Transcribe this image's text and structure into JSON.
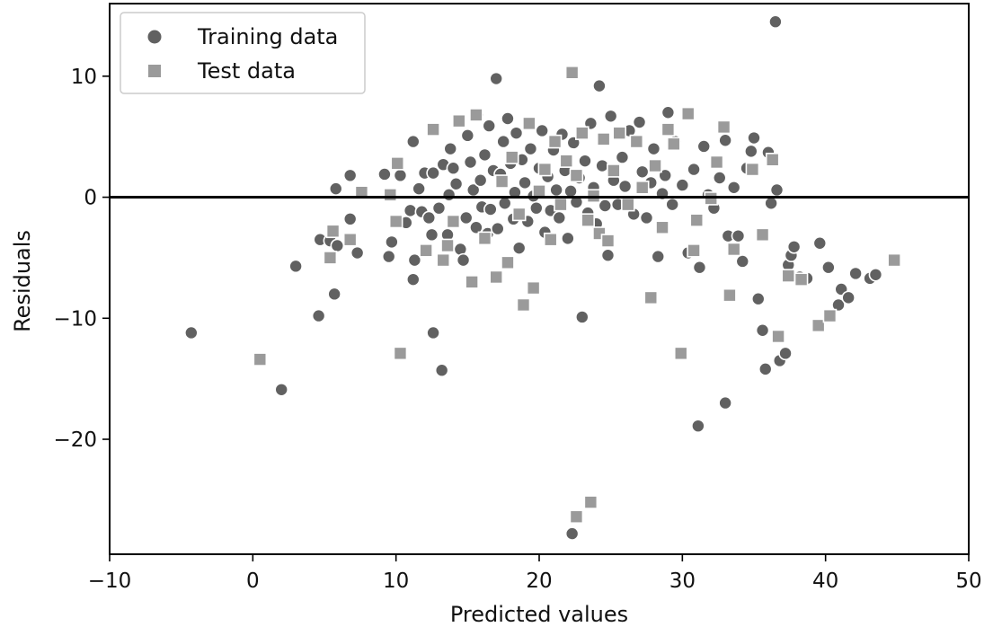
{
  "chart_data": {
    "type": "scatter",
    "title": "",
    "xlabel": "Predicted values",
    "ylabel": "Residuals",
    "xlim": [
      -10,
      50
    ],
    "ylim": [
      -29.5,
      16
    ],
    "xticks": [
      -10,
      0,
      10,
      20,
      30,
      40,
      50
    ],
    "yticks": [
      -20,
      -10,
      0,
      10
    ],
    "xtick_labels": [
      "−10",
      "0",
      "10",
      "20",
      "30",
      "40",
      "50"
    ],
    "ytick_labels": [
      "−20",
      "−10",
      "0",
      "10"
    ],
    "grid": false,
    "legend_position": "top-left",
    "reference_line": {
      "y": 0
    },
    "colors": {
      "training": "#616161",
      "test": "#9a9a9a",
      "line": "#000000",
      "edge": "#ffffff"
    },
    "series": [
      {
        "name": "Training data",
        "marker": "circle",
        "points": [
          [
            -4.3,
            -11.2
          ],
          [
            2.0,
            -15.9
          ],
          [
            3.0,
            -5.7
          ],
          [
            4.6,
            -9.8
          ],
          [
            4.7,
            -3.5
          ],
          [
            5.4,
            -3.6
          ],
          [
            5.7,
            -8.0
          ],
          [
            5.8,
            0.7
          ],
          [
            5.9,
            -4.0
          ],
          [
            6.8,
            1.8
          ],
          [
            6.8,
            -1.8
          ],
          [
            7.3,
            -4.6
          ],
          [
            9.2,
            1.9
          ],
          [
            9.5,
            -4.9
          ],
          [
            9.7,
            -3.7
          ],
          [
            10.3,
            1.8
          ],
          [
            10.7,
            -2.1
          ],
          [
            11.0,
            -1.1
          ],
          [
            11.2,
            -6.8
          ],
          [
            11.2,
            4.6
          ],
          [
            11.3,
            -5.2
          ],
          [
            11.6,
            0.7
          ],
          [
            11.8,
            -1.2
          ],
          [
            12.0,
            2.0
          ],
          [
            12.3,
            -1.7
          ],
          [
            12.5,
            -3.1
          ],
          [
            12.6,
            -11.2
          ],
          [
            12.6,
            2.0
          ],
          [
            13.0,
            -0.9
          ],
          [
            13.2,
            -14.3
          ],
          [
            13.3,
            2.7
          ],
          [
            13.6,
            -3.1
          ],
          [
            13.7,
            0.2
          ],
          [
            13.8,
            4.0
          ],
          [
            14.0,
            2.4
          ],
          [
            14.2,
            1.1
          ],
          [
            14.5,
            -4.3
          ],
          [
            14.7,
            -5.2
          ],
          [
            14.9,
            -1.7
          ],
          [
            15.0,
            5.1
          ],
          [
            15.2,
            2.9
          ],
          [
            15.4,
            0.6
          ],
          [
            15.6,
            -2.5
          ],
          [
            15.7,
            6.8
          ],
          [
            15.9,
            1.4
          ],
          [
            16.0,
            -0.8
          ],
          [
            16.2,
            3.5
          ],
          [
            16.4,
            -3.0
          ],
          [
            16.5,
            5.9
          ],
          [
            16.6,
            -1.0
          ],
          [
            16.8,
            2.2
          ],
          [
            17.0,
            9.8
          ],
          [
            17.1,
            -2.6
          ],
          [
            17.3,
            1.9
          ],
          [
            17.5,
            4.6
          ],
          [
            17.6,
            -0.5
          ],
          [
            17.8,
            6.5
          ],
          [
            18.0,
            2.8
          ],
          [
            18.2,
            -1.8
          ],
          [
            18.3,
            0.4
          ],
          [
            18.4,
            5.3
          ],
          [
            18.6,
            -4.2
          ],
          [
            18.8,
            3.1
          ],
          [
            19.0,
            1.2
          ],
          [
            19.2,
            -2.0
          ],
          [
            19.4,
            4.0
          ],
          [
            19.6,
            0.1
          ],
          [
            19.8,
            -0.9
          ],
          [
            20.0,
            2.4
          ],
          [
            20.2,
            5.5
          ],
          [
            20.4,
            -2.9
          ],
          [
            20.6,
            1.7
          ],
          [
            20.8,
            -1.1
          ],
          [
            21.0,
            3.9
          ],
          [
            21.2,
            0.6
          ],
          [
            21.4,
            -1.7
          ],
          [
            21.6,
            5.2
          ],
          [
            21.8,
            2.2
          ],
          [
            22.0,
            -3.4
          ],
          [
            22.2,
            0.5
          ],
          [
            22.4,
            4.5
          ],
          [
            22.6,
            -0.4
          ],
          [
            22.8,
            1.6
          ],
          [
            23.0,
            -9.9
          ],
          [
            23.2,
            3.0
          ],
          [
            23.4,
            -1.3
          ],
          [
            23.6,
            6.1
          ],
          [
            23.8,
            0.8
          ],
          [
            24.0,
            -2.2
          ],
          [
            24.2,
            9.2
          ],
          [
            24.4,
            2.6
          ],
          [
            24.6,
            -0.7
          ],
          [
            24.8,
            -4.8
          ],
          [
            25.0,
            6.7
          ],
          [
            25.2,
            1.4
          ],
          [
            25.5,
            -0.6
          ],
          [
            25.8,
            3.3
          ],
          [
            26.0,
            0.9
          ],
          [
            26.3,
            5.5
          ],
          [
            26.6,
            -1.4
          ],
          [
            27.0,
            6.2
          ],
          [
            27.2,
            2.1
          ],
          [
            27.5,
            -1.7
          ],
          [
            27.8,
            1.2
          ],
          [
            28.0,
            4.0
          ],
          [
            28.3,
            -4.9
          ],
          [
            28.6,
            0.3
          ],
          [
            28.8,
            1.8
          ],
          [
            29.0,
            7.0
          ],
          [
            29.3,
            -0.6
          ],
          [
            29.5,
            4.6
          ],
          [
            30.0,
            1.0
          ],
          [
            30.4,
            -4.6
          ],
          [
            30.8,
            2.3
          ],
          [
            31.1,
            -18.9
          ],
          [
            31.2,
            -5.8
          ],
          [
            31.5,
            4.2
          ],
          [
            31.8,
            0.2
          ],
          [
            32.2,
            -0.9
          ],
          [
            32.6,
            1.6
          ],
          [
            33.0,
            -17.0
          ],
          [
            33.0,
            4.7
          ],
          [
            33.2,
            -3.2
          ],
          [
            33.6,
            0.8
          ],
          [
            33.9,
            -3.2
          ],
          [
            34.2,
            -5.3
          ],
          [
            34.5,
            2.4
          ],
          [
            34.8,
            3.8
          ],
          [
            35.0,
            4.9
          ],
          [
            35.3,
            -8.4
          ],
          [
            35.6,
            -11.0
          ],
          [
            35.8,
            -14.2
          ],
          [
            36.0,
            3.7
          ],
          [
            36.2,
            -0.5
          ],
          [
            36.5,
            14.5
          ],
          [
            36.6,
            0.6
          ],
          [
            36.8,
            -13.5
          ],
          [
            37.2,
            -12.9
          ],
          [
            37.4,
            -5.6
          ],
          [
            37.6,
            -4.8
          ],
          [
            37.8,
            -4.1
          ],
          [
            38.2,
            -6.6
          ],
          [
            38.7,
            -6.7
          ],
          [
            39.6,
            -3.8
          ],
          [
            40.2,
            -5.8
          ],
          [
            40.9,
            -8.9
          ],
          [
            41.1,
            -7.6
          ],
          [
            41.6,
            -8.3
          ],
          [
            42.1,
            -6.3
          ],
          [
            43.1,
            -6.7
          ],
          [
            43.5,
            -6.4
          ],
          [
            22.3,
            -27.8
          ]
        ]
      },
      {
        "name": "Test data",
        "marker": "square",
        "points": [
          [
            0.5,
            -13.4
          ],
          [
            5.4,
            -5.0
          ],
          [
            5.6,
            -2.8
          ],
          [
            6.8,
            -3.5
          ],
          [
            7.6,
            0.4
          ],
          [
            9.6,
            0.2
          ],
          [
            10.0,
            -2.0
          ],
          [
            10.1,
            2.8
          ],
          [
            10.3,
            -12.9
          ],
          [
            12.1,
            -4.4
          ],
          [
            12.6,
            5.6
          ],
          [
            13.3,
            -5.2
          ],
          [
            13.6,
            -4.0
          ],
          [
            14.0,
            -2.0
          ],
          [
            14.4,
            6.3
          ],
          [
            15.3,
            -7.0
          ],
          [
            15.6,
            6.8
          ],
          [
            16.2,
            -3.4
          ],
          [
            17.0,
            -6.6
          ],
          [
            17.4,
            1.3
          ],
          [
            17.8,
            -5.4
          ],
          [
            18.1,
            3.3
          ],
          [
            18.6,
            -1.4
          ],
          [
            18.9,
            -8.9
          ],
          [
            19.3,
            6.1
          ],
          [
            19.6,
            -7.5
          ],
          [
            20.0,
            0.5
          ],
          [
            20.4,
            2.3
          ],
          [
            20.8,
            -3.5
          ],
          [
            21.1,
            4.6
          ],
          [
            21.5,
            -0.6
          ],
          [
            21.9,
            3.0
          ],
          [
            22.3,
            10.3
          ],
          [
            22.6,
            1.8
          ],
          [
            23.0,
            5.3
          ],
          [
            23.4,
            -1.9
          ],
          [
            23.8,
            0.1
          ],
          [
            24.2,
            -3.0
          ],
          [
            24.5,
            4.8
          ],
          [
            24.8,
            -3.6
          ],
          [
            25.2,
            2.2
          ],
          [
            25.6,
            5.3
          ],
          [
            26.2,
            -0.6
          ],
          [
            26.8,
            4.6
          ],
          [
            27.2,
            0.8
          ],
          [
            27.8,
            -8.3
          ],
          [
            28.1,
            2.6
          ],
          [
            28.6,
            -2.5
          ],
          [
            29.0,
            5.6
          ],
          [
            29.4,
            4.4
          ],
          [
            29.9,
            -12.9
          ],
          [
            30.4,
            6.9
          ],
          [
            30.8,
            -4.4
          ],
          [
            31.0,
            -1.9
          ],
          [
            32.0,
            -0.1
          ],
          [
            32.4,
            2.9
          ],
          [
            32.9,
            5.8
          ],
          [
            33.3,
            -8.1
          ],
          [
            33.6,
            -4.3
          ],
          [
            34.9,
            2.3
          ],
          [
            35.6,
            -3.1
          ],
          [
            36.3,
            3.1
          ],
          [
            36.7,
            -11.5
          ],
          [
            37.4,
            -6.5
          ],
          [
            38.3,
            -6.8
          ],
          [
            39.5,
            -10.6
          ],
          [
            40.3,
            -9.8
          ],
          [
            44.8,
            -5.2
          ],
          [
            22.6,
            -26.4
          ],
          [
            23.6,
            -25.2
          ]
        ]
      }
    ]
  }
}
